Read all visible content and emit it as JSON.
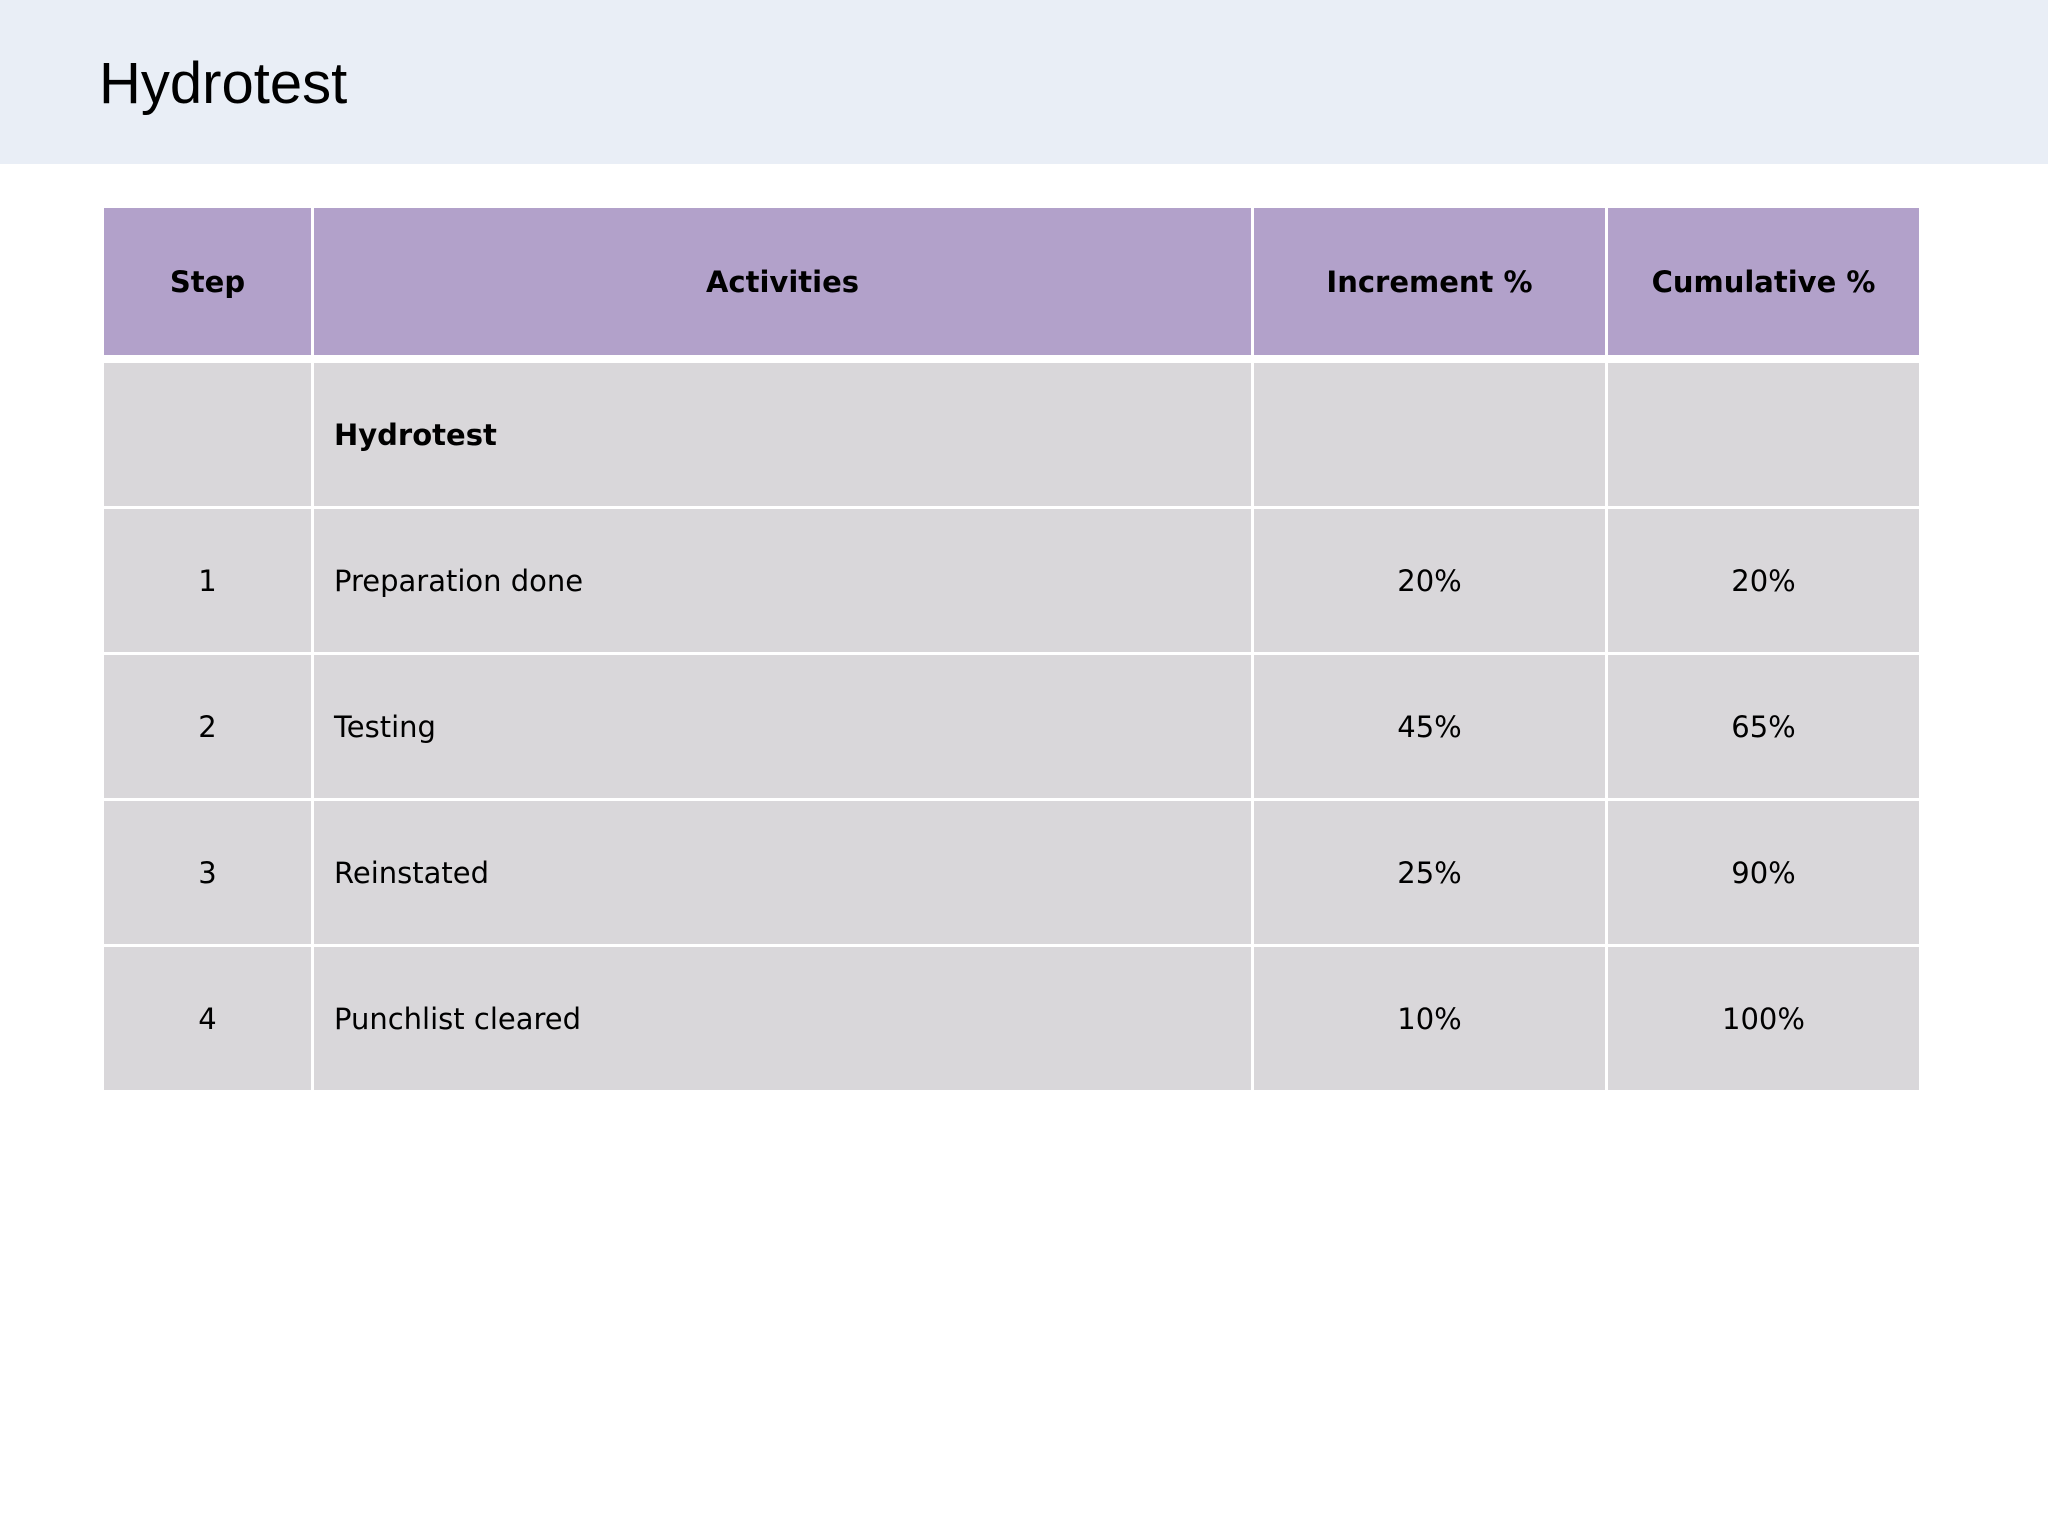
{
  "page": {
    "title": "Hydrotest"
  },
  "table": {
    "headers": {
      "step": "Step",
      "activities": "Activities",
      "increment": "Increment %",
      "cumulative": "Cumulative %"
    },
    "group_row": {
      "step": "",
      "activity": "Hydrotest",
      "increment": "",
      "cumulative": ""
    },
    "rows": [
      {
        "step": "1",
        "activity": "Preparation done",
        "increment": "20%",
        "cumulative": "20%"
      },
      {
        "step": "2",
        "activity": "Testing",
        "increment": "45%",
        "cumulative": "65%"
      },
      {
        "step": "3",
        "activity": "Reinstated",
        "increment": "25%",
        "cumulative": "90%"
      },
      {
        "step": "4",
        "activity": "Punchlist cleared",
        "increment": "10%",
        "cumulative": "100%"
      }
    ]
  },
  "colors": {
    "header_band": "#e9eef6",
    "table_header": "#b2a1ca",
    "table_cell": "#d9d7da"
  }
}
